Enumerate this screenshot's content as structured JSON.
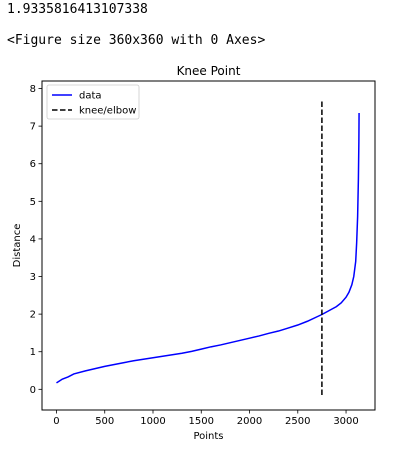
{
  "output": {
    "value_line": "1.9335816413107338",
    "figure_line": "<Figure size 360x360 with 0 Axes>"
  },
  "chart_data": {
    "type": "line",
    "title": "Knee Point",
    "xlabel": "Points",
    "ylabel": "Distance",
    "xlim": [
      -150,
      3300
    ],
    "ylim": [
      -0.55,
      8.2
    ],
    "xticks": [
      0,
      500,
      1000,
      1500,
      2000,
      2500,
      3000
    ],
    "yticks": [
      0,
      1,
      2,
      3,
      4,
      5,
      6,
      7,
      8
    ],
    "grid": false,
    "legend_position": "top-left",
    "series": [
      {
        "name": "data",
        "color": "#0000ff",
        "style": "solid",
        "x": [
          0,
          60,
          120,
          180,
          300,
          400,
          500,
          600,
          700,
          800,
          900,
          1000,
          1100,
          1200,
          1300,
          1400,
          1500,
          1600,
          1700,
          1800,
          1900,
          2000,
          2100,
          2200,
          2300,
          2400,
          2500,
          2600,
          2700,
          2750,
          2800,
          2850,
          2900,
          2950,
          3000,
          3030,
          3060,
          3080,
          3100,
          3110,
          3120,
          3128,
          3133,
          3135
        ],
        "y": [
          0.17,
          0.27,
          0.33,
          0.41,
          0.49,
          0.55,
          0.61,
          0.66,
          0.71,
          0.76,
          0.8,
          0.84,
          0.88,
          0.92,
          0.96,
          1.01,
          1.07,
          1.13,
          1.18,
          1.24,
          1.3,
          1.36,
          1.42,
          1.49,
          1.55,
          1.63,
          1.71,
          1.81,
          1.93,
          1.99,
          2.06,
          2.13,
          2.2,
          2.3,
          2.45,
          2.58,
          2.78,
          3.0,
          3.4,
          3.9,
          4.6,
          5.6,
          6.6,
          7.35
        ]
      },
      {
        "name": "knee/elbow",
        "color": "#000000",
        "style": "dashed",
        "x": [
          2750,
          2750
        ],
        "y": [
          -0.15,
          7.72
        ]
      }
    ]
  }
}
